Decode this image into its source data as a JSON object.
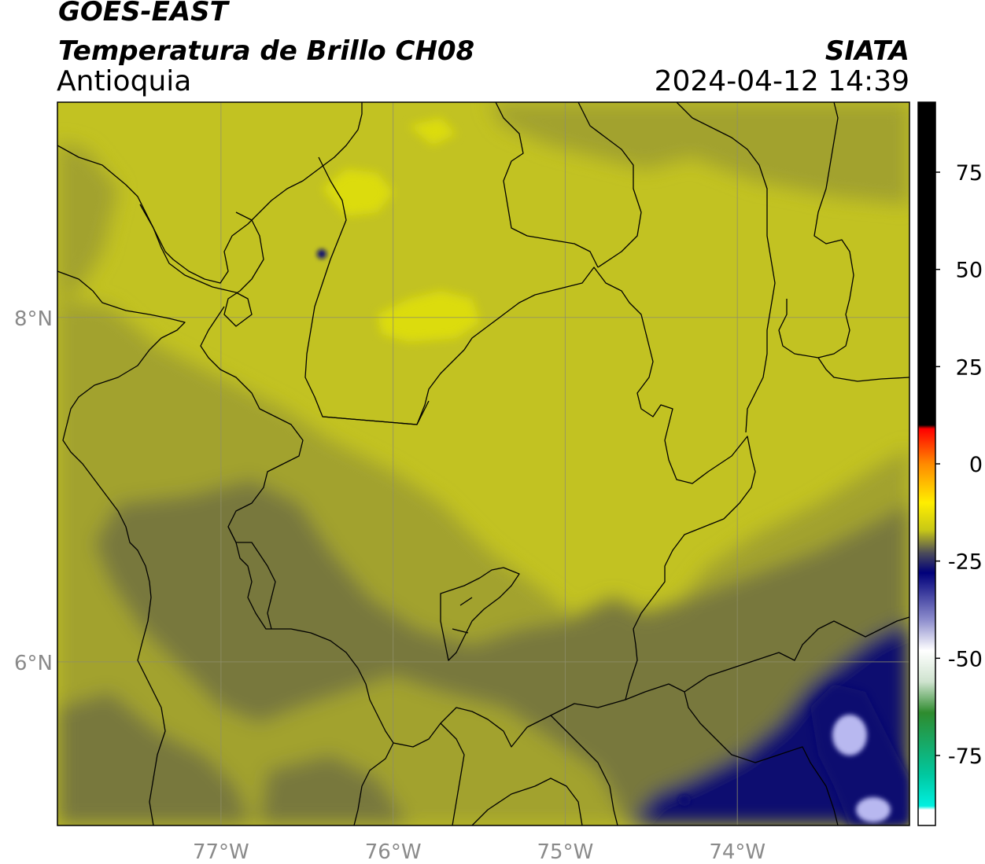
{
  "header": {
    "satellite": "GOES-EAST",
    "product": "Temperatura de Brillo CH08",
    "brand": "SIATA",
    "region": "Antioquia",
    "datetime": "2024-04-12 14:39"
  },
  "axes": {
    "lon_ticks": [
      {
        "value": -77,
        "label": "77°W"
      },
      {
        "value": -76,
        "label": "76°W"
      },
      {
        "value": -75,
        "label": "75°W"
      },
      {
        "value": -74,
        "label": "74°W"
      }
    ],
    "lat_ticks": [
      {
        "value": 8,
        "label": "8°N"
      },
      {
        "value": 6,
        "label": "6°N"
      }
    ],
    "lon_range": [
      -77.95,
      -73.0
    ],
    "lat_range": [
      5.05,
      9.25
    ],
    "grid": true
  },
  "colorbar": {
    "range": [
      -93,
      93
    ],
    "ticks": [
      {
        "value": 75,
        "label": "75"
      },
      {
        "value": 50,
        "label": "50"
      },
      {
        "value": 25,
        "label": "25"
      },
      {
        "value": 0,
        "label": "0"
      },
      {
        "value": -25,
        "label": "-25"
      },
      {
        "value": -50,
        "label": "-50"
      },
      {
        "value": -75,
        "label": "-75"
      }
    ],
    "stops": [
      {
        "value": 93,
        "color": "#000000"
      },
      {
        "value": 10,
        "color": "#000000"
      },
      {
        "value": 9,
        "color": "#ff0000"
      },
      {
        "value": 0,
        "color": "#ff8a00"
      },
      {
        "value": -10,
        "color": "#ffee00"
      },
      {
        "value": -17,
        "color": "#c8c816"
      },
      {
        "value": -23,
        "color": "#4a4a5a"
      },
      {
        "value": -28,
        "color": "#00007a"
      },
      {
        "value": -40,
        "color": "#8c8ccc"
      },
      {
        "value": -48,
        "color": "#ffffff"
      },
      {
        "value": -56,
        "color": "#cfe3cf"
      },
      {
        "value": -64,
        "color": "#2e8b2e"
      },
      {
        "value": -80,
        "color": "#00c8a0"
      },
      {
        "value": -88,
        "color": "#00f0e0"
      },
      {
        "value": -89,
        "color": "#ffffff"
      }
    ]
  },
  "colors": {
    "base_field": "#c2c222",
    "bright": "#dcdc0c",
    "mid": "#a2a22e",
    "dark": "#78783e",
    "cold": "#101070",
    "coldest": "#b8b8f0"
  }
}
